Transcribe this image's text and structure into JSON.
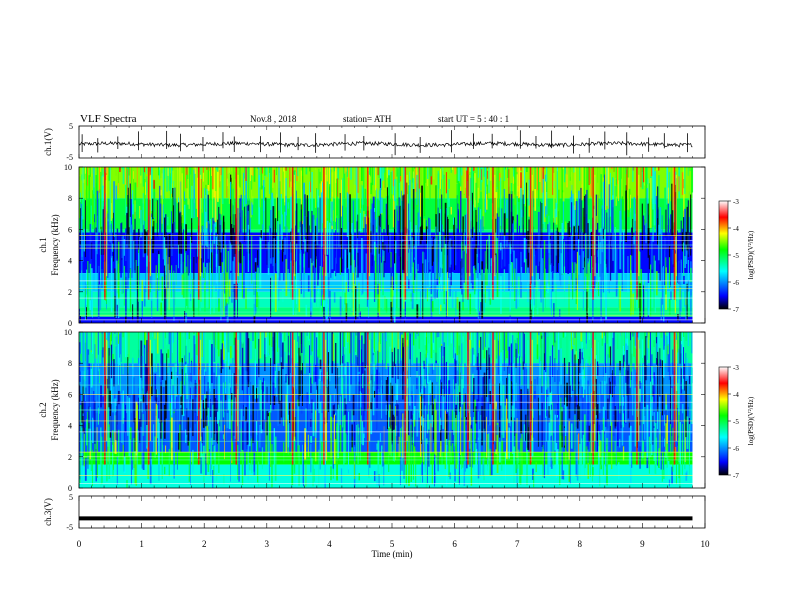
{
  "header": {
    "title": "VLF  Spectra",
    "date": "Nov.8  , 2018",
    "station": "station= ATH",
    "start_ut": "start  UT  =   5  : 40 : 1"
  },
  "chart_data": [
    {
      "type": "line",
      "name": "ch1-waveform",
      "ylabel": "ch.1(V)",
      "ylim": [
        -5,
        5
      ],
      "yticks": [
        "5",
        "-5"
      ],
      "xlim": [
        0,
        10
      ],
      "x_extent_min": 9.8,
      "baseline_v": -0.7,
      "spike_times_min": [
        0.05,
        0.3,
        0.62,
        0.95,
        1.4,
        1.62,
        1.98,
        2.3,
        2.48,
        2.9,
        3.22,
        3.5,
        3.78,
        4.25,
        4.55,
        5.05,
        5.45,
        5.95,
        6.3,
        6.6,
        7.05,
        7.3,
        7.55,
        7.9,
        8.15,
        8.4,
        8.75,
        9.1,
        9.35,
        9.72
      ]
    },
    {
      "type": "heatmap",
      "name": "ch1-spectrogram",
      "ylabel": "ch.1",
      "ylabel2": "Frequency  (kHz)",
      "ylim": [
        0,
        10
      ],
      "yticks": [
        "0",
        "2",
        "4",
        "6",
        "8",
        "10"
      ],
      "xlim": [
        0,
        10
      ],
      "x_extent_min": 9.8,
      "colorbar": {
        "label": "log(PSD)(V²/Hz)",
        "range": [
          -7,
          -3
        ],
        "ticks": [
          "-3",
          "-4",
          "-5",
          "-6",
          "-7"
        ],
        "colors": [
          "#000000",
          "#0000ff",
          "#00ffff",
          "#00ff00",
          "#ffff00",
          "#ff0000",
          "#ffffff"
        ]
      },
      "bands_khz": [
        {
          "from": 8.0,
          "to": 10.0,
          "level": -4.5
        },
        {
          "from": 6.0,
          "to": 8.0,
          "level": -5.0
        },
        {
          "from": 5.8,
          "to": 6.0,
          "level": -5.2
        },
        {
          "from": 3.2,
          "to": 5.8,
          "level": -6.5
        },
        {
          "from": 2.0,
          "to": 3.2,
          "level": -5.8
        },
        {
          "from": 1.0,
          "to": 2.0,
          "level": -5.4
        },
        {
          "from": 0.4,
          "to": 1.0,
          "level": -5.2
        },
        {
          "from": 0.0,
          "to": 0.4,
          "level": -6.5
        }
      ],
      "line_khz": [
        0.2,
        0.5,
        0.7,
        1.6,
        2.2,
        2.4,
        2.7,
        4.8,
        5.0,
        5.3,
        5.6
      ],
      "burst_times_min": [
        0.4,
        1.1,
        1.9,
        2.5,
        3.4,
        3.9,
        4.6,
        5.2,
        6.2,
        6.6,
        7.2,
        8.2,
        8.9,
        9.5
      ]
    },
    {
      "type": "heatmap",
      "name": "ch2-spectrogram",
      "ylabel": "ch.2",
      "ylabel2": "Frequency  (kHz)",
      "ylim": [
        0,
        10
      ],
      "yticks": [
        "0",
        "2",
        "4",
        "6",
        "8",
        "10"
      ],
      "xlim": [
        0,
        10
      ],
      "x_extent_min": 9.8,
      "colorbar": {
        "label": "log(PSD)(V²/Hz)",
        "range": [
          -7,
          -3
        ],
        "ticks": [
          "-3",
          "-4",
          "-5",
          "-6",
          "-7"
        ],
        "colors": [
          "#000000",
          "#0000ff",
          "#00ffff",
          "#00ff00",
          "#ffff00",
          "#ff0000",
          "#ffffff"
        ]
      },
      "bands_khz": [
        {
          "from": 8.0,
          "to": 10.0,
          "level": -5.3
        },
        {
          "from": 6.0,
          "to": 8.0,
          "level": -6.0
        },
        {
          "from": 2.3,
          "to": 6.0,
          "level": -6.2
        },
        {
          "from": 1.5,
          "to": 2.3,
          "level": -4.8
        },
        {
          "from": 0.0,
          "to": 1.5,
          "level": -5.5
        }
      ],
      "line_khz": [
        0.3,
        0.8,
        1.8,
        2.0,
        2.3,
        3.0,
        3.6,
        4.3,
        5.0,
        5.5,
        6.0,
        6.6,
        7.2,
        7.8
      ],
      "burst_times_min": [
        0.4,
        1.1,
        1.9,
        2.5,
        3.4,
        3.9,
        4.6,
        5.2,
        6.2,
        6.6,
        7.2,
        8.2,
        8.9,
        9.5
      ]
    },
    {
      "type": "line",
      "name": "ch3-waveform",
      "ylabel": "ch.3(V)",
      "ylim": [
        -5,
        5
      ],
      "yticks": [
        "5",
        "-5"
      ],
      "xlim": [
        0,
        10
      ],
      "x_extent_min": 9.8,
      "baseline_v": -2.0
    }
  ],
  "xaxis": {
    "label": "Time  (min)",
    "ticks": [
      "0",
      "1",
      "2",
      "3",
      "4",
      "5",
      "6",
      "7",
      "8",
      "9",
      "10"
    ]
  }
}
